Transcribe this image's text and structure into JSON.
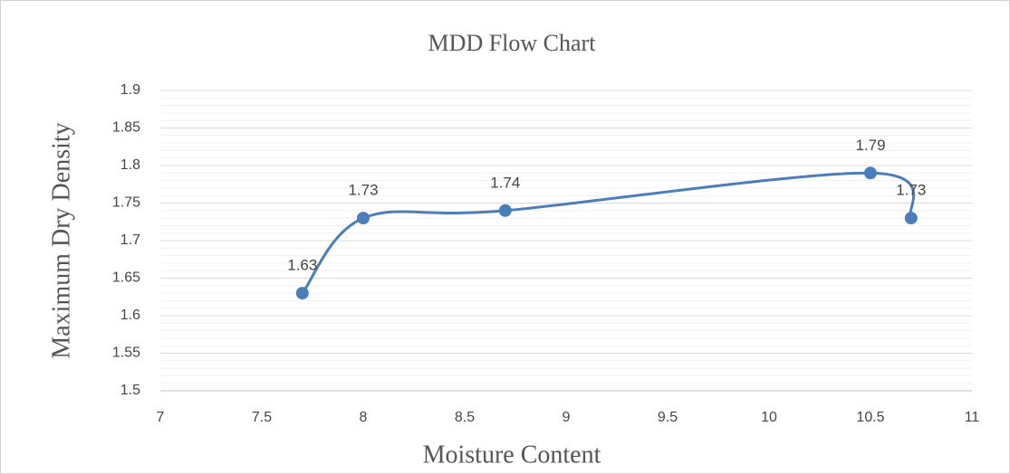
{
  "chart_data": {
    "type": "scatter_smooth",
    "title": "MDD Flow Chart",
    "x_label": "Moisture Content",
    "y_label": "Maximum Dry Density",
    "series": [
      {
        "name": "MDD",
        "color": "#4a7ebb",
        "x": [
          7.7,
          8,
          8.7,
          10.5,
          10.7
        ],
        "values": [
          1.63,
          1.73,
          1.74,
          1.79,
          1.73
        ]
      }
    ],
    "xlim": [
      7,
      11
    ],
    "xticks": [
      7,
      7.5,
      8,
      8.5,
      9,
      9.5,
      10,
      10.5,
      11
    ],
    "ylim": [
      1.5,
      1.9
    ],
    "yticks": [
      1.5,
      1.55,
      1.6,
      1.65,
      1.7,
      1.75,
      1.8,
      1.85,
      1.9
    ],
    "grid": true
  }
}
